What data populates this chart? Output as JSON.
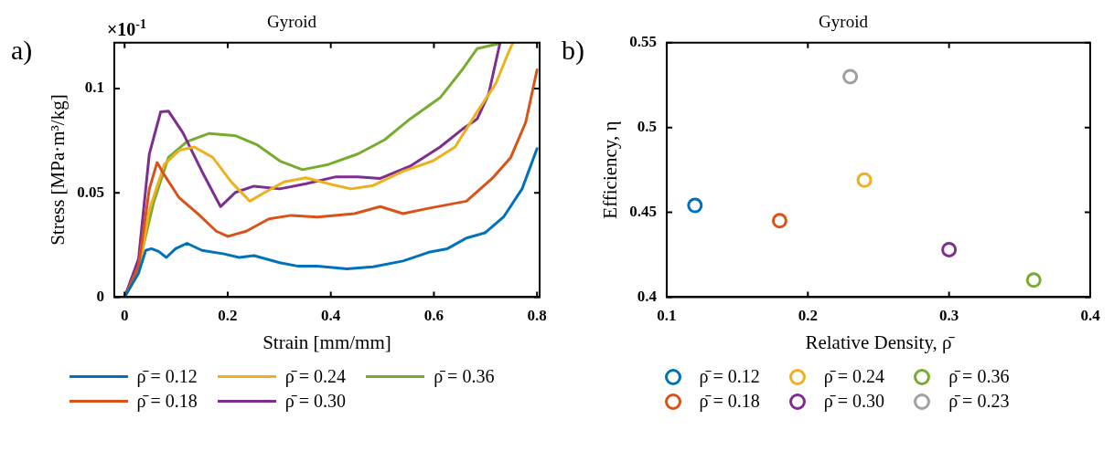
{
  "chart_data": [
    {
      "type": "line",
      "title": "Gyroid",
      "xlabel": "Strain [mm/mm]",
      "ylabel": "Stress [MPa·m³/kg]",
      "annotations": [
        "a)",
        "×10$^{-1}$"
      ],
      "xlim": [
        -0.02,
        0.805
      ],
      "xticks": [
        0,
        0.2,
        0.4,
        0.6,
        0.8
      ],
      "ylim": [
        0,
        0.122
      ],
      "yticks": [
        0,
        0.05,
        0.1
      ],
      "legend": "bottom",
      "marker": "none",
      "line_style": "solid",
      "series": [
        {
          "name": "ρ̄ = 0.12",
          "color": "#0072bd",
          "x": [
            0,
            0.027,
            0.041,
            0.052,
            0.066,
            0.081,
            0.099,
            0.121,
            0.15,
            0.193,
            0.222,
            0.251,
            0.301,
            0.337,
            0.374,
            0.431,
            0.482,
            0.54,
            0.59,
            0.626,
            0.663,
            0.699,
            0.735,
            0.771,
            0.8
          ],
          "values": [
            0,
            0.0114,
            0.0224,
            0.0232,
            0.0219,
            0.019,
            0.0232,
            0.0258,
            0.0224,
            0.0207,
            0.019,
            0.0199,
            0.0165,
            0.0148,
            0.0148,
            0.0135,
            0.0145,
            0.0173,
            0.0215,
            0.0232,
            0.0283,
            0.0308,
            0.0384,
            0.0519,
            0.0712
          ]
        },
        {
          "name": "ρ̄ = 0.18",
          "color": "#d95319",
          "x": [
            0,
            0.027,
            0.048,
            0.063,
            0.077,
            0.106,
            0.142,
            0.178,
            0.2,
            0.236,
            0.28,
            0.323,
            0.374,
            0.446,
            0.496,
            0.54,
            0.59,
            0.663,
            0.713,
            0.749,
            0.778,
            0.8
          ],
          "values": [
            0,
            0.0148,
            0.0519,
            0.0645,
            0.0586,
            0.0476,
            0.04,
            0.0316,
            0.0291,
            0.0316,
            0.0375,
            0.0392,
            0.0384,
            0.04,
            0.0434,
            0.04,
            0.0426,
            0.046,
            0.0569,
            0.067,
            0.0838,
            0.109
          ]
        },
        {
          "name": "ρ̄ = 0.24",
          "color": "#edb120",
          "x": [
            0,
            0.027,
            0.048,
            0.077,
            0.106,
            0.135,
            0.171,
            0.207,
            0.243,
            0.272,
            0.309,
            0.352,
            0.395,
            0.439,
            0.482,
            0.54,
            0.598,
            0.641,
            0.684,
            0.72,
            0.742,
            0.753
          ],
          "values": [
            0,
            0.0114,
            0.0418,
            0.0636,
            0.0704,
            0.072,
            0.067,
            0.0552,
            0.046,
            0.0502,
            0.0552,
            0.0572,
            0.0544,
            0.0519,
            0.0535,
            0.0603,
            0.0653,
            0.072,
            0.0889,
            0.1024,
            0.1158,
            0.122
          ]
        },
        {
          "name": "ρ̄ = 0.30",
          "color": "#7e2f8e",
          "x": [
            0,
            0.027,
            0.048,
            0.07,
            0.085,
            0.113,
            0.15,
            0.186,
            0.215,
            0.251,
            0.301,
            0.352,
            0.41,
            0.453,
            0.496,
            0.554,
            0.612,
            0.655,
            0.684,
            0.706,
            0.728
          ],
          "values": [
            0,
            0.0182,
            0.0687,
            0.0889,
            0.0892,
            0.0788,
            0.0603,
            0.0434,
            0.0502,
            0.0532,
            0.0519,
            0.0544,
            0.0577,
            0.0577,
            0.0569,
            0.0628,
            0.072,
            0.0805,
            0.0855,
            0.0973,
            0.1217
          ]
        },
        {
          "name": "ρ̄ = 0.36",
          "color": "#77ac30",
          "x": [
            0,
            0.027,
            0.056,
            0.085,
            0.121,
            0.164,
            0.215,
            0.258,
            0.301,
            0.345,
            0.395,
            0.453,
            0.504,
            0.554,
            0.612,
            0.655,
            0.684,
            0.728
          ],
          "values": [
            0,
            0.0148,
            0.0451,
            0.067,
            0.0746,
            0.0785,
            0.0774,
            0.0729,
            0.0653,
            0.0611,
            0.0636,
            0.0687,
            0.0754,
            0.0855,
            0.0956,
            0.1091,
            0.1192,
            0.1217
          ]
        }
      ]
    },
    {
      "type": "scatter",
      "title": "Gyroid",
      "xlabel": "Relative Density, ρ̄",
      "ylabel": "Efficiency, η",
      "annotations": [
        "b)"
      ],
      "xlim": [
        0.1,
        0.4
      ],
      "xticks": [
        0.1,
        0.2,
        0.3,
        0.4
      ],
      "ylim": [
        0.4,
        0.55
      ],
      "yticks": [
        0.4,
        0.45,
        0.5,
        0.55
      ],
      "legend": "bottom",
      "marker": "circle",
      "series": [
        {
          "name": "ρ̄ = 0.12",
          "color": "#0072bd",
          "x": [
            0.12
          ],
          "values": [
            0.454
          ]
        },
        {
          "name": "ρ̄ = 0.18",
          "color": "#d95319",
          "x": [
            0.18
          ],
          "values": [
            0.445
          ]
        },
        {
          "name": "ρ̄ = 0.24",
          "color": "#edb120",
          "x": [
            0.24
          ],
          "values": [
            0.469
          ]
        },
        {
          "name": "ρ̄ = 0.30",
          "color": "#7e2f8e",
          "x": [
            0.3
          ],
          "values": [
            0.428
          ]
        },
        {
          "name": "ρ̄ = 0.36",
          "color": "#77ac30",
          "x": [
            0.36
          ],
          "values": [
            0.41
          ]
        },
        {
          "name": "ρ̄ = 0.23",
          "color": "#a0a0a0",
          "x": [
            0.23
          ],
          "values": [
            0.53
          ]
        }
      ]
    }
  ]
}
